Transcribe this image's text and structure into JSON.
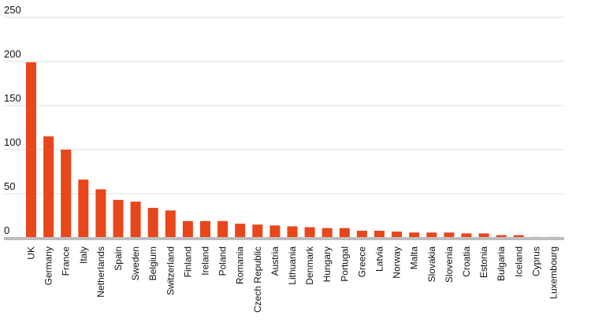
{
  "chart_data": {
    "type": "bar",
    "title": "",
    "xlabel": "",
    "ylabel": "",
    "ylim": [
      0,
      250
    ],
    "yticks": [
      0,
      50,
      100,
      150,
      200,
      250
    ],
    "grid": true,
    "bar_color": "#e8461b",
    "baseline_color": "#bdbdbd",
    "categories": [
      "UK",
      "Germany",
      "France",
      "Italy",
      "Netherlands",
      "Spain",
      "Sweden",
      "Belgium",
      "Switzerland",
      "Finland",
      "Ireland",
      "Poland",
      "Romania",
      "Czech Republic",
      "Austria",
      "Lithuania",
      "Denmark",
      "Hungary",
      "Portugal",
      "Greece",
      "Latvia",
      "Norway",
      "Malta",
      "Slovakia",
      "Slovenia",
      "Croatia",
      "Estonia",
      "Bulgaria",
      "Iceland",
      "Cyprus",
      "Luxembourg"
    ],
    "values": [
      199,
      115,
      100,
      66,
      55,
      43,
      41,
      34,
      31,
      19,
      19,
      19,
      16,
      15,
      14,
      13,
      12,
      11,
      11,
      8,
      8,
      7,
      6,
      6,
      6,
      5,
      5,
      3,
      3,
      1,
      1
    ]
  }
}
